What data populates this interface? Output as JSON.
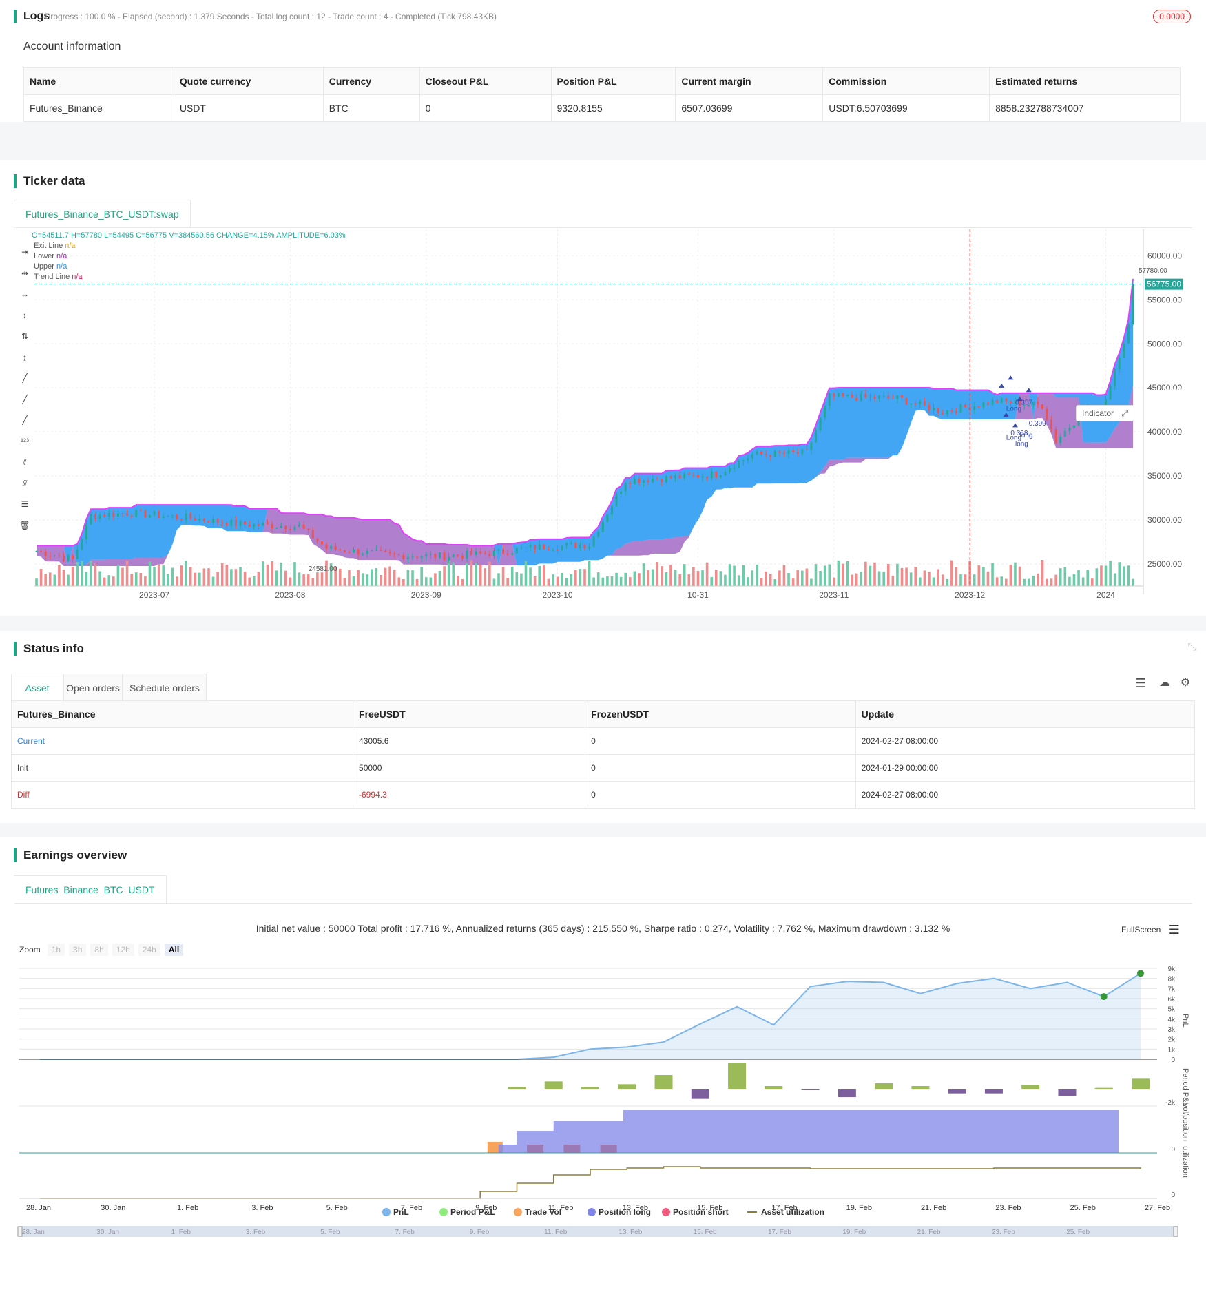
{
  "logs": {
    "title": "Logs",
    "status": "- Progress : 100.0 % - Elapsed (second) : 1.379  Seconds - Total log count : 12 - Trade count : 4 - Completed (Tick 798.43KB)",
    "badge": "0.0000"
  },
  "account": {
    "title": "Account information",
    "columns": [
      "Name",
      "Quote currency",
      "Currency",
      "Closeout P&L",
      "Position P&L",
      "Current margin",
      "Commission",
      "Estimated returns"
    ],
    "row": [
      "Futures_Binance",
      "USDT",
      "BTC",
      "0",
      "9320.8155",
      "6507.03699",
      "USDT:6.50703699",
      "8858.232788734007"
    ]
  },
  "ticker": {
    "title": "Ticker data",
    "tab": "Futures_Binance_BTC_USDT:swap",
    "ohlc": "O=54511.7 H=57780 L=54495 C=56775 V=384560.56 CHANGE=4.15% AMPLITUDE=6.03%",
    "legend": [
      {
        "name": "Exit Line",
        "value": "n/a",
        "color": "#f0a020"
      },
      {
        "name": "Lower",
        "value": "n/a",
        "color": "#9c27b0"
      },
      {
        "name": "Upper",
        "value": "n/a",
        "color": "#2196f3"
      },
      {
        "name": "Trend Line",
        "value": "n/a",
        "color": "#e91e63"
      }
    ],
    "indicator_label": "Indicator",
    "price_ticks": [
      "60000.00",
      "55000.00",
      "50000.00",
      "45000.00",
      "40000.00",
      "35000.00",
      "30000.00",
      "25000.00"
    ],
    "price_tick_values": [
      60000,
      55000,
      50000,
      45000,
      40000,
      35000,
      30000,
      25000
    ],
    "last_price": "56775.00",
    "high_label": "57780.00",
    "low_label": "24581.00",
    "x_ticks": [
      "2023-07",
      "2023-08",
      "2023-09",
      "2023-10",
      "10-31",
      "2023-11",
      "2023-12",
      "2024"
    ],
    "trade_labels": [
      "Long",
      "0.357",
      "long",
      "0.399",
      "Long",
      "0.368",
      "long"
    ]
  },
  "status": {
    "title": "Status info",
    "tabs": [
      "Asset",
      "Open orders",
      "Schedule orders"
    ],
    "columns": [
      "Futures_Binance",
      "FreeUSDT",
      "FrozenUSDT",
      "Update"
    ],
    "rows": [
      [
        "Current",
        "43005.6",
        "0",
        "2024-02-27 08:00:00"
      ],
      [
        "Init",
        "50000",
        "0",
        "2024-01-29 00:00:00"
      ],
      [
        "Diff",
        "-6994.3",
        "0",
        "2024-02-27 08:00:00"
      ]
    ]
  },
  "earnings": {
    "title": "Earnings overview",
    "tab": "Futures_Binance_BTC_USDT",
    "summary": "Initial net value : 50000  Total profit : 17.716 %, Annualized returns (365 days) : 215.550 %, Sharpe ratio : 0.274, Volatility : 7.762 %, Maximum drawdown : 3.132 %",
    "fullscreen": "FullScreen",
    "zoom_label": "Zoom",
    "zoom_options": [
      "1h",
      "3h",
      "8h",
      "12h",
      "24h",
      "All"
    ],
    "pnl_ticks": [
      "9k",
      "8k",
      "7k",
      "6k",
      "5k",
      "4k",
      "3k",
      "2k",
      "1k",
      "0"
    ],
    "pnl_axis": "PnL",
    "period_axis": "Period P&L",
    "period_tick": "-2k",
    "vol_axis": "vol/position",
    "vol_tick": "0",
    "util_axis": "utilization",
    "util_tick": "0",
    "x_ticks": [
      "28. Jan",
      "30. Jan",
      "1. Feb",
      "3. Feb",
      "5. Feb",
      "7. Feb",
      "9. Feb",
      "11. Feb",
      "13. Feb",
      "15. Feb",
      "17. Feb",
      "19. Feb",
      "21. Feb",
      "23. Feb",
      "25. Feb",
      "27. Feb"
    ],
    "nav_ticks": [
      "28. Jan",
      "30. Jan",
      "1. Feb",
      "3. Feb",
      "5. Feb",
      "7. Feb",
      "9. Feb",
      "11. Feb",
      "13. Feb",
      "15. Feb",
      "17. Feb",
      "19. Feb",
      "21. Feb",
      "23. Feb",
      "25. Feb"
    ],
    "legend": [
      {
        "name": "PnL",
        "color": "#7cb5ec"
      },
      {
        "name": "Period P&L",
        "color": "#90ed7d"
      },
      {
        "name": "Trade Vol",
        "color": "#f7a35c"
      },
      {
        "name": "Position long",
        "color": "#8085e9"
      },
      {
        "name": "Position short",
        "color": "#f15c80"
      },
      {
        "name": "Asset utilization",
        "color": "#8d7b3a"
      }
    ]
  },
  "chart_data": {
    "type": "line",
    "title": "",
    "x": [
      0,
      1,
      2,
      3,
      4,
      5,
      6,
      7,
      8,
      9,
      10,
      11,
      12,
      13,
      14,
      15,
      16,
      17,
      18,
      19,
      20,
      21,
      22,
      23,
      24,
      25,
      26,
      27,
      28,
      29,
      30
    ],
    "series": [
      {
        "name": "PnL",
        "values": [
          0,
          0,
          0,
          0,
          0,
          0,
          0,
          0,
          0,
          0,
          0,
          0,
          0,
          0,
          200,
          1000,
          1200,
          1700,
          3500,
          5200,
          3400,
          7200,
          7700,
          7600,
          6500,
          7500,
          8000,
          7000,
          7600,
          6200,
          8500
        ]
      }
    ],
    "ylim": [
      0,
      9000
    ]
  }
}
